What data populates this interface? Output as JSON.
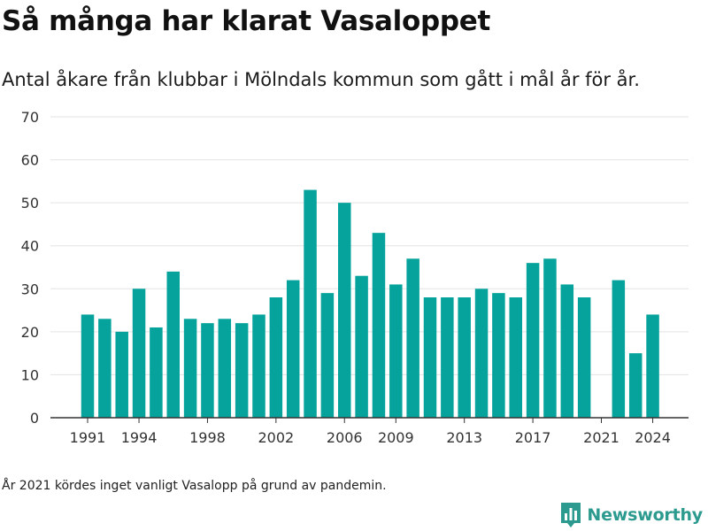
{
  "header": {
    "title": "Så många har klarat Vasaloppet",
    "subtitle": "Antal åkare från klubbar i Mölndals kommun som gått i mål år för år."
  },
  "footer": {
    "note": "År 2021 kördes inget vanligt Vasalopp på grund av pandemin.",
    "brand": "Newsworthy"
  },
  "colors": {
    "bar": "#05a39b",
    "grid": "#e3e3e3",
    "axis": "#333333",
    "brand": "#2c9a8e"
  },
  "icons": {
    "brand_logo": "bar-chart-logo-icon"
  },
  "chart_data": {
    "type": "bar",
    "x": [
      1991,
      1992,
      1993,
      1994,
      1995,
      1996,
      1997,
      1998,
      1999,
      2000,
      2001,
      2002,
      2003,
      2004,
      2005,
      2006,
      2007,
      2008,
      2009,
      2010,
      2011,
      2012,
      2013,
      2014,
      2015,
      2016,
      2017,
      2018,
      2019,
      2020,
      2021,
      2022,
      2023,
      2024
    ],
    "values": [
      24,
      23,
      20,
      30,
      21,
      34,
      23,
      22,
      23,
      22,
      24,
      28,
      32,
      53,
      29,
      50,
      33,
      43,
      31,
      37,
      28,
      28,
      28,
      30,
      29,
      28,
      36,
      37,
      31,
      28,
      0,
      32,
      15,
      24
    ],
    "xticks": [
      "1991",
      "1994",
      "1998",
      "2002",
      "2006",
      "2009",
      "2013",
      "2017",
      "2021",
      "2024"
    ],
    "yticks": [
      "0",
      "10",
      "20",
      "30",
      "40",
      "50",
      "60",
      "70"
    ],
    "ylim": [
      0,
      70
    ],
    "grid": true
  }
}
